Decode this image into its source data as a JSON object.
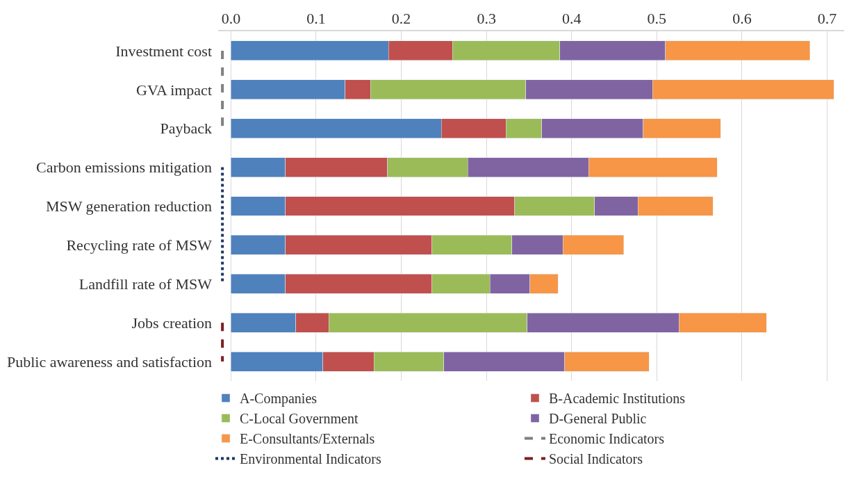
{
  "chart_data": {
    "type": "bar",
    "orientation": "horizontal",
    "stacked": true,
    "categories": [
      "Investment cost",
      "GVA impact",
      "Payback",
      "Carbon emissions mitigation",
      "MSW generation reduction",
      "Recycling rate of MSW",
      "Landfill rate of MSW",
      "Jobs creation",
      "Public awareness and satisfaction"
    ],
    "series": [
      {
        "name": "A-Companies",
        "color": "#4f81bd",
        "values": [
          0.185,
          0.134,
          0.247,
          0.064,
          0.064,
          0.064,
          0.064,
          0.076,
          0.108
        ]
      },
      {
        "name": "B-Academic Institutions",
        "color": "#c0504d",
        "values": [
          0.075,
          0.03,
          0.076,
          0.12,
          0.269,
          0.172,
          0.172,
          0.039,
          0.06
        ]
      },
      {
        "name": "C-Local Government",
        "color": "#9bbb59",
        "values": [
          0.126,
          0.182,
          0.042,
          0.094,
          0.094,
          0.094,
          0.068,
          0.233,
          0.082
        ]
      },
      {
        "name": "D-General Public",
        "color": "#8064a2",
        "values": [
          0.124,
          0.149,
          0.119,
          0.142,
          0.051,
          0.06,
          0.047,
          0.178,
          0.142
        ]
      },
      {
        "name": "E-Consultants/Externals",
        "color": "#f79646",
        "values": [
          0.17,
          0.213,
          0.091,
          0.151,
          0.088,
          0.071,
          0.033,
          0.103,
          0.099
        ]
      },
      {
        "name": "Economic Indicators",
        "type": "line",
        "line_style": "dashed",
        "color": "#808080",
        "values": [
          -0.01,
          -0.01,
          -0.01,
          null,
          null,
          null,
          null,
          null,
          null
        ]
      },
      {
        "name": "Environmental Indicators",
        "type": "line",
        "line_style": "dotted",
        "color": "#1f3864",
        "values": [
          null,
          null,
          null,
          -0.01,
          -0.01,
          -0.01,
          -0.01,
          null,
          null
        ]
      },
      {
        "name": "Social Indicators",
        "type": "line",
        "line_style": "dashed",
        "color": "#7b2020",
        "values": [
          null,
          null,
          null,
          null,
          null,
          null,
          null,
          -0.01,
          -0.01
        ]
      }
    ],
    "xlim": [
      -0.015,
      0.72
    ],
    "xticks": [
      {
        "value": 0,
        "label": "0.0"
      },
      0.1,
      0.2,
      0.3,
      0.4,
      0.5,
      0.6,
      0.7
    ],
    "grid": "x",
    "legend": "bottom",
    "marker": "none"
  }
}
